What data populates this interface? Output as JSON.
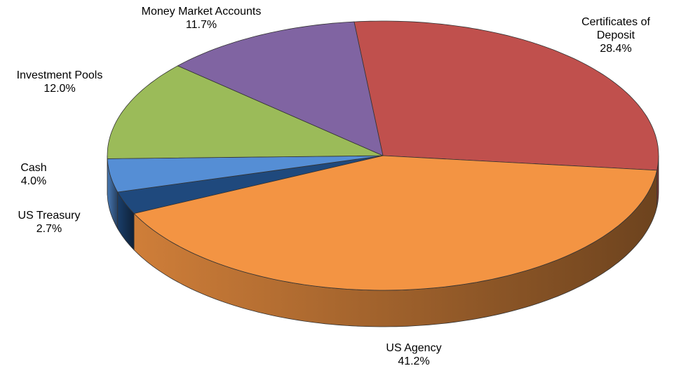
{
  "chart_data": {
    "type": "pie",
    "categories": [
      "Certificates of Deposit",
      "US Agency",
      "US Treasury",
      "Cash",
      "Investment Pools",
      "Money Market Accounts"
    ],
    "values": [
      28.4,
      41.2,
      2.7,
      4.0,
      12.0,
      11.7
    ],
    "value_labels": [
      "28.4%",
      "41.2%",
      "2.7%",
      "4.0%",
      "12.0%",
      "11.7%"
    ],
    "colors": [
      "#c0504d",
      "#f39443",
      "#1f497d",
      "#558ed5",
      "#9bbb59",
      "#8064a2"
    ]
  }
}
